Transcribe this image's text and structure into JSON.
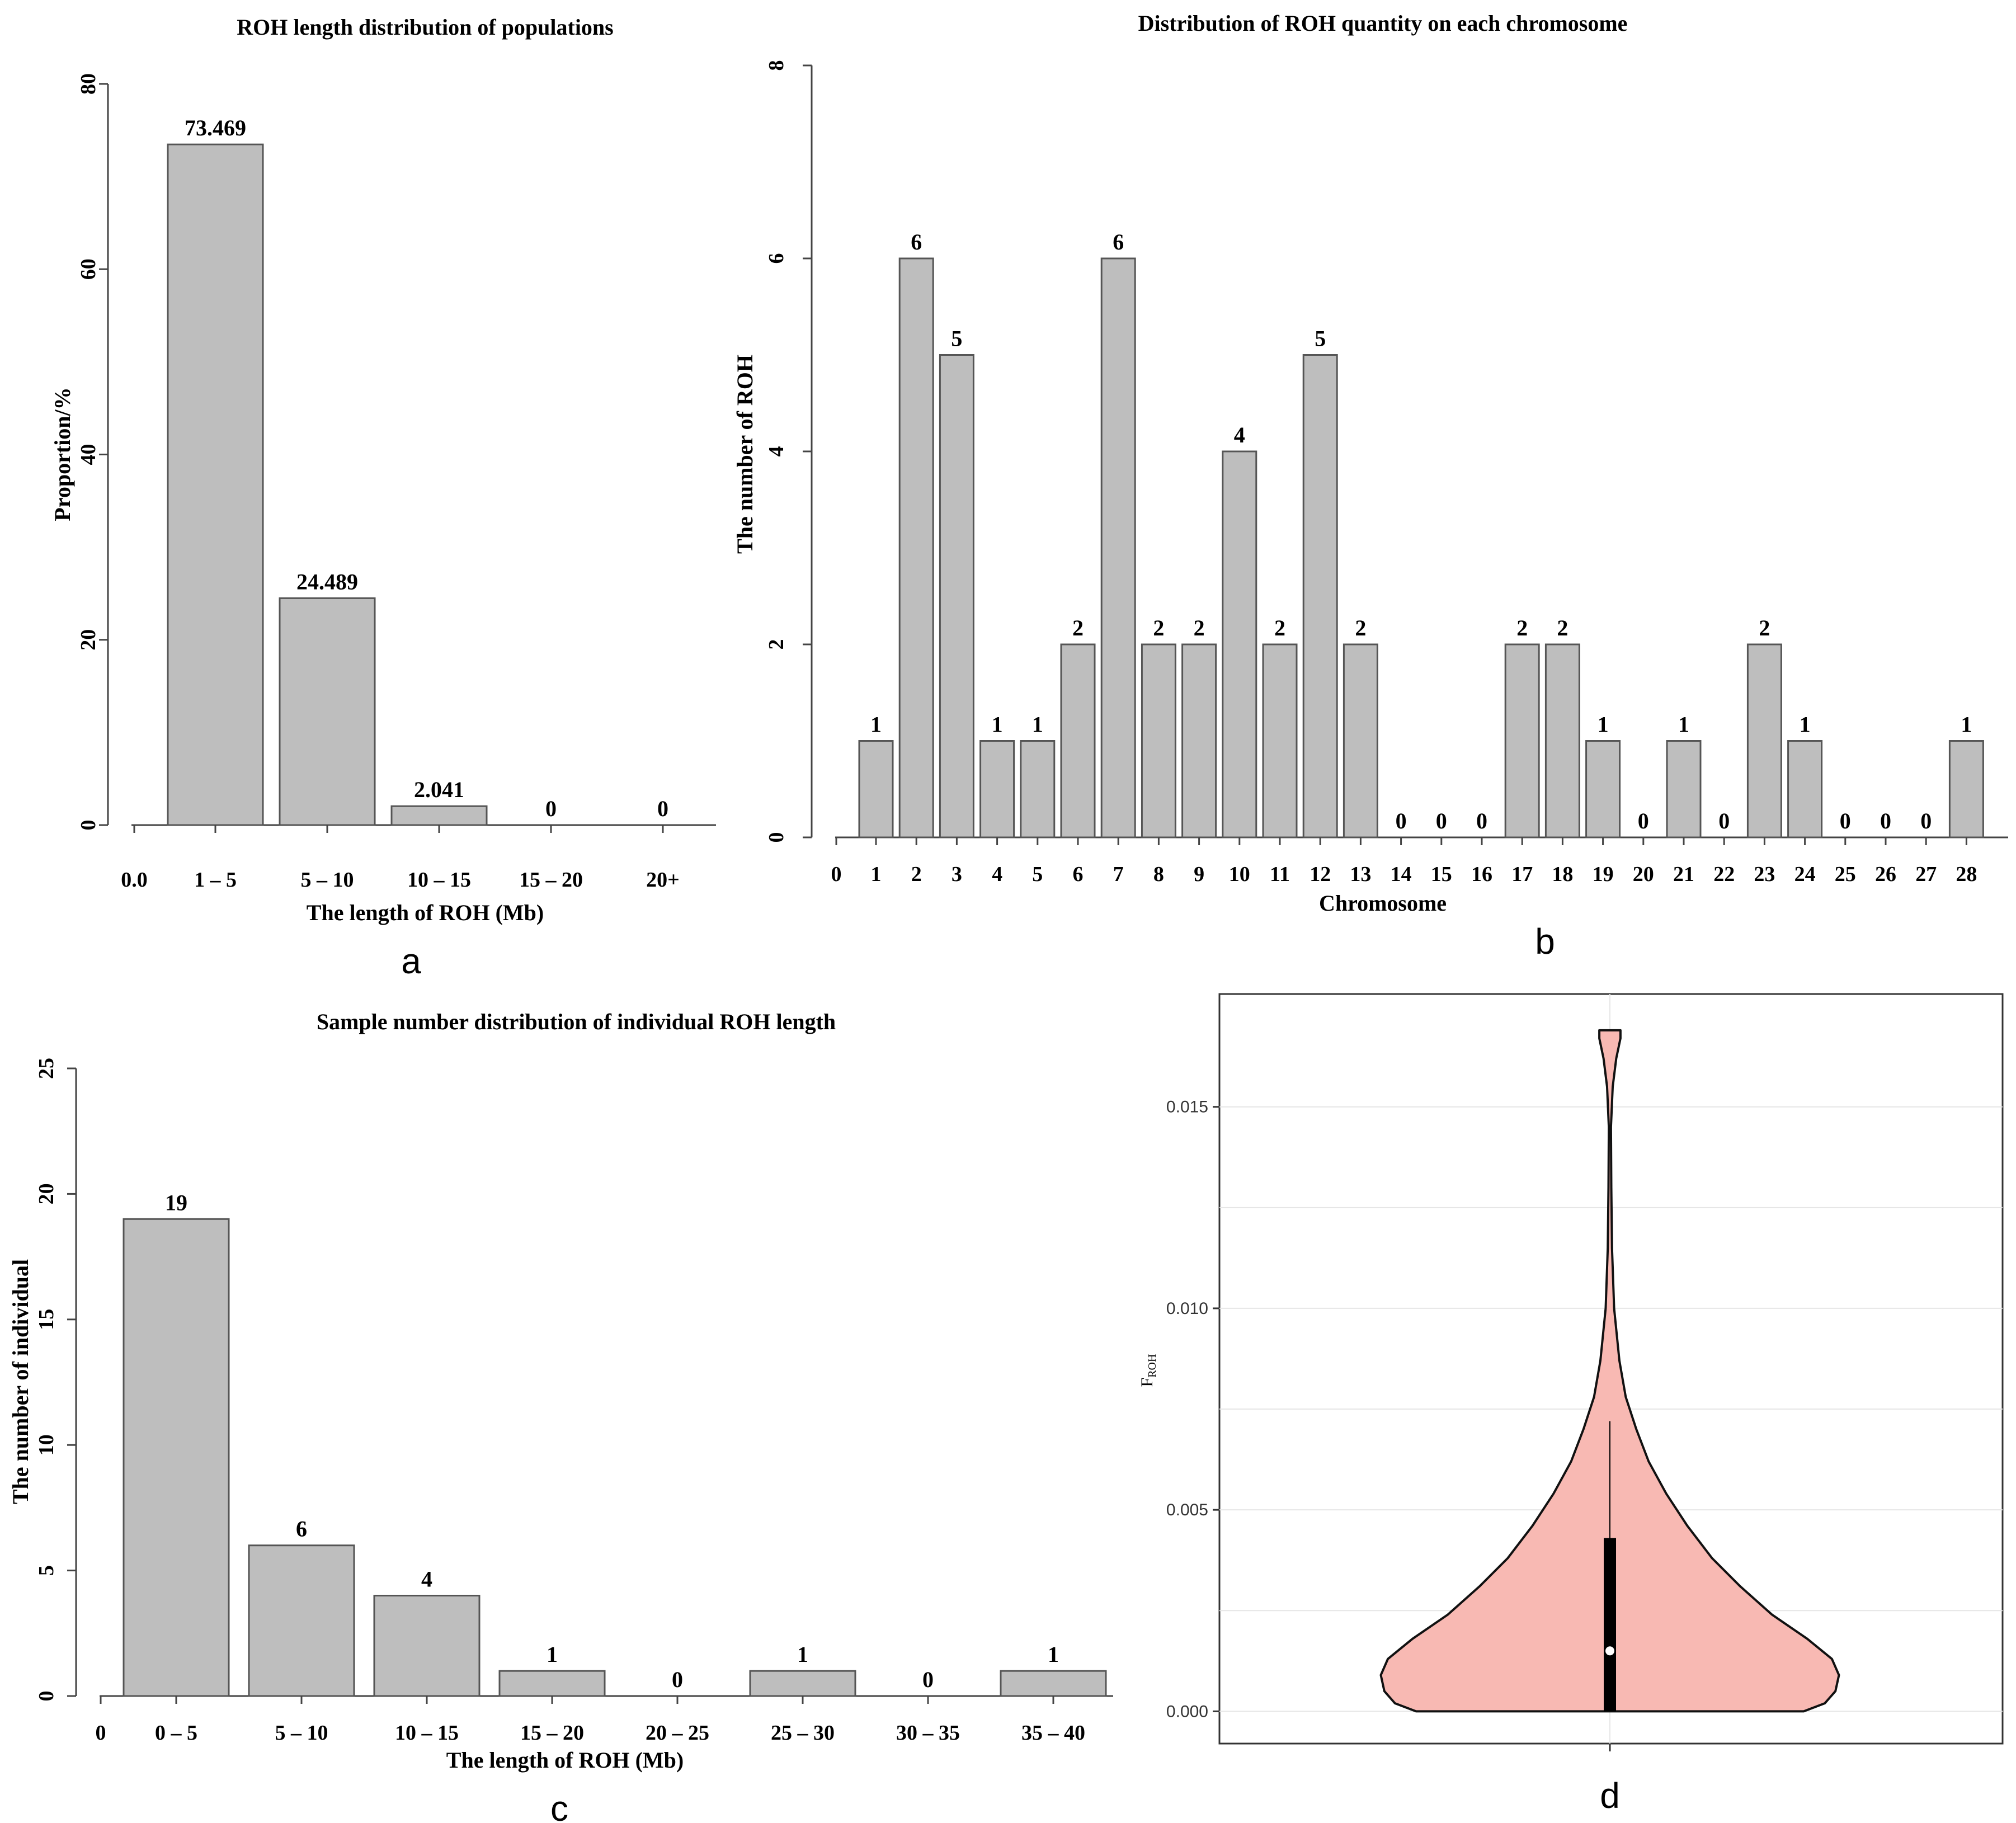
{
  "chart_data": [
    {
      "id": "a",
      "panel_label": "a",
      "type": "bar",
      "title": "ROH length distribution of populations",
      "xlabel": "The length of ROH (Mb)",
      "ylabel": "Proportion/%",
      "x_origin_label": "0.0",
      "categories": [
        "1 – 5",
        "5 – 10",
        "10 – 15",
        "15 – 20",
        "20+"
      ],
      "values": [
        73.469,
        24.489,
        2.041,
        0,
        0
      ],
      "data_labels": [
        "73.469",
        "24.489",
        "2.041",
        "0",
        "0"
      ],
      "ylim": [
        0,
        80
      ],
      "yticks": [
        0,
        20,
        40,
        60,
        80
      ],
      "bar_color": "#bebebe"
    },
    {
      "id": "b",
      "panel_label": "b",
      "type": "bar",
      "title": "Distribution of ROH quantity on each chromosome",
      "xlabel": "Chromosome",
      "ylabel": "The number of ROH",
      "x_origin_label": "0",
      "categories": [
        "1",
        "2",
        "3",
        "4",
        "5",
        "6",
        "7",
        "8",
        "9",
        "10",
        "11",
        "12",
        "13",
        "14",
        "15",
        "16",
        "17",
        "18",
        "19",
        "20",
        "21",
        "22",
        "23",
        "24",
        "25",
        "26",
        "27",
        "28"
      ],
      "values": [
        1,
        6,
        5,
        1,
        1,
        2,
        6,
        2,
        2,
        4,
        2,
        5,
        2,
        0,
        0,
        0,
        2,
        2,
        1,
        0,
        1,
        0,
        2,
        1,
        0,
        0,
        0,
        1
      ],
      "data_labels": [
        "1",
        "6",
        "5",
        "1",
        "1",
        "2",
        "6",
        "2",
        "2",
        "4",
        "2",
        "5",
        "2",
        "0",
        "0",
        "0",
        "2",
        "2",
        "1",
        "0",
        "1",
        "0",
        "2",
        "1",
        "0",
        "0",
        "0",
        "1"
      ],
      "ylim": [
        0,
        8
      ],
      "yticks": [
        0,
        2,
        4,
        6,
        8
      ],
      "bar_color": "#bebebe"
    },
    {
      "id": "c",
      "panel_label": "c",
      "type": "bar",
      "title": "Sample number distribution of individual ROH length",
      "xlabel": "The length of ROH (Mb)",
      "ylabel": "The number of individual",
      "x_origin_label": "0",
      "categories": [
        "0 – 5",
        "5 – 10",
        "10 – 15",
        "15 – 20",
        "20 – 25",
        "25 – 30",
        "30 – 35",
        "35 – 40"
      ],
      "values": [
        19,
        6,
        4,
        1,
        0,
        1,
        0,
        1
      ],
      "data_labels": [
        "19",
        "6",
        "4",
        "1",
        "0",
        "1",
        "0",
        "1"
      ],
      "ylim": [
        0,
        25
      ],
      "yticks": [
        0,
        5,
        10,
        15,
        20,
        25
      ],
      "bar_color": "#bebebe"
    },
    {
      "id": "d",
      "panel_label": "d",
      "type": "violin",
      "title": "",
      "ylabel_main": "F",
      "ylabel_sub": "ROH",
      "ylim": [
        -0.0008,
        0.0178
      ],
      "yticks": [
        0.0,
        0.005,
        0.01,
        0.015
      ],
      "ytick_labels": [
        "0.000",
        "0.005",
        "0.010",
        "0.015"
      ],
      "fill_color": "#f8b9b3",
      "box_color": "#000000",
      "median_color": "#ffffff",
      "violin_min": 0.0,
      "violin_max": 0.0169,
      "box_q1": 0.0,
      "box_q3": 0.0043,
      "median": 0.0015,
      "whisker_high": 0.0072,
      "density_profile": [
        [
          0.0,
          0.55
        ],
        [
          0.0002,
          0.61
        ],
        [
          0.0005,
          0.64
        ],
        [
          0.0009,
          0.65
        ],
        [
          0.0013,
          0.63
        ],
        [
          0.0018,
          0.56
        ],
        [
          0.0024,
          0.46
        ],
        [
          0.0031,
          0.37
        ],
        [
          0.0038,
          0.29
        ],
        [
          0.0046,
          0.22
        ],
        [
          0.0054,
          0.16
        ],
        [
          0.0062,
          0.11
        ],
        [
          0.007,
          0.075
        ],
        [
          0.0078,
          0.045
        ],
        [
          0.0087,
          0.027
        ],
        [
          0.01,
          0.012
        ],
        [
          0.0115,
          0.006
        ],
        [
          0.013,
          0.004
        ],
        [
          0.0145,
          0.003
        ],
        [
          0.0155,
          0.008
        ],
        [
          0.0162,
          0.018
        ],
        [
          0.0167,
          0.03
        ],
        [
          0.0169,
          0.03
        ]
      ]
    }
  ]
}
